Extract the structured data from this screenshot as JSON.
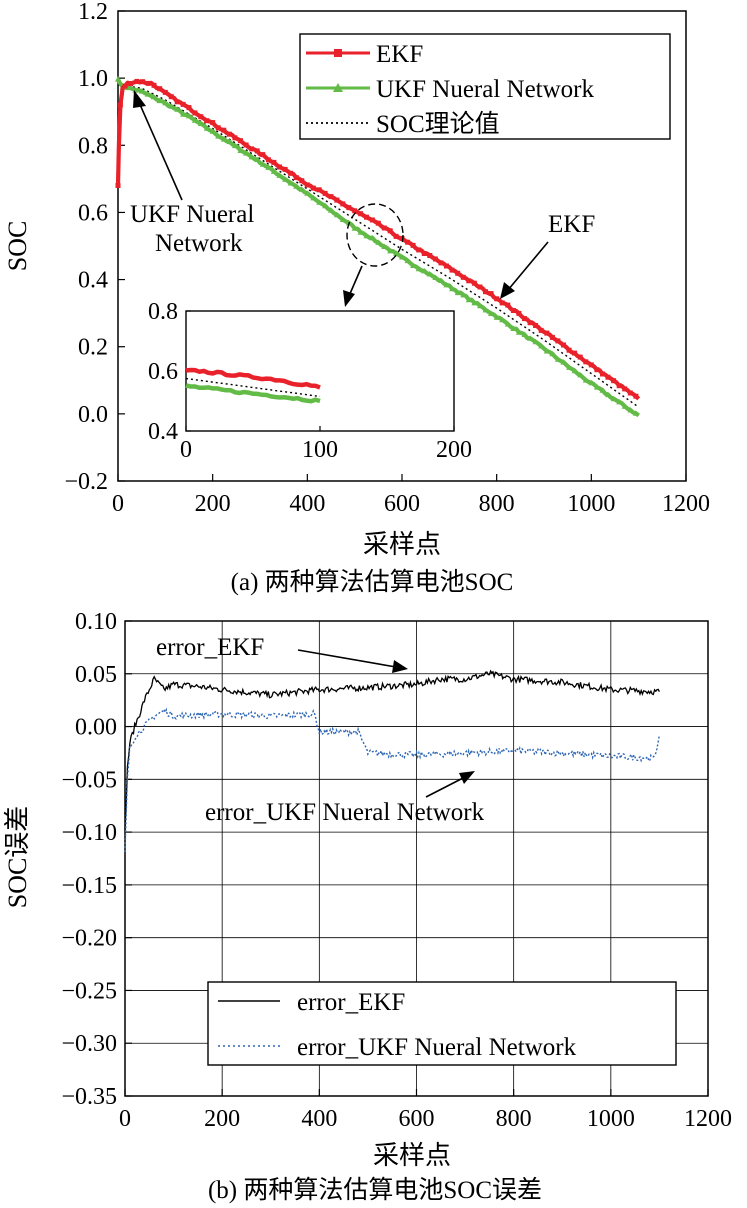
{
  "chart_data": [
    {
      "type": "line",
      "caption": "(a) 两种算法估算电池SOC",
      "xlabel": "采样点",
      "ylabel": "SOC",
      "xlim": [
        0,
        1200
      ],
      "ylim": [
        -0.2,
        1.2
      ],
      "xticks": [
        "0",
        "200",
        "400",
        "600",
        "800",
        "1000",
        "1200"
      ],
      "yticks": [
        "1.2",
        "1.0",
        "0.8",
        "0.6",
        "0.4",
        "0.2",
        "0.0",
        "−0.2"
      ],
      "grid": false,
      "legend_position": "top-right",
      "series": [
        {
          "name": "EKF",
          "color": "#e8212a",
          "x": [
            0,
            2,
            5,
            10,
            20,
            40,
            70,
            100,
            150,
            200,
            300,
            400,
            450,
            500,
            550,
            600,
            700,
            800,
            900,
            1000,
            1100
          ],
          "y": [
            0.68,
            0.8,
            0.92,
            0.97,
            0.985,
            0.99,
            0.985,
            0.955,
            0.91,
            0.865,
            0.775,
            0.685,
            0.645,
            0.605,
            0.565,
            0.52,
            0.435,
            0.345,
            0.245,
            0.145,
            0.045
          ]
        },
        {
          "name": "UKF Nueral Network",
          "color": "#62bb46",
          "x": [
            0,
            3,
            10,
            30,
            50,
            100,
            150,
            200,
            300,
            400,
            450,
            500,
            550,
            600,
            700,
            800,
            900,
            1000,
            1100
          ],
          "y": [
            1.0,
            0.985,
            0.975,
            0.968,
            0.96,
            0.925,
            0.885,
            0.84,
            0.75,
            0.655,
            0.605,
            0.555,
            0.51,
            0.465,
            0.38,
            0.29,
            0.195,
            0.09,
            -0.005
          ]
        },
        {
          "name": "SOC理论值",
          "color": "#000000",
          "x": [
            0,
            50,
            100,
            200,
            300,
            400,
            500,
            600,
            700,
            800,
            900,
            1000,
            1100
          ],
          "y": [
            0.98,
            0.97,
            0.935,
            0.85,
            0.76,
            0.67,
            0.58,
            0.49,
            0.405,
            0.315,
            0.22,
            0.12,
            0.02
          ]
        }
      ],
      "annotations": [
        {
          "text_lines": [
            "UKF Nueral",
            "Network"
          ]
        },
        {
          "text_lines": [
            "EKF"
          ]
        }
      ],
      "inset": {
        "xlim": [
          0,
          200
        ],
        "ylim": [
          0.4,
          0.8
        ],
        "xticks": [
          "0",
          "100",
          "200"
        ],
        "yticks": [
          "0.8",
          "0.6",
          "0.4"
        ],
        "series": [
          {
            "name": "EKF",
            "color": "#e8212a",
            "x": [
              0,
              10,
              20,
              30,
              40,
              50,
              60,
              70,
              80,
              90,
              100
            ],
            "y": [
              0.6,
              0.6,
              0.595,
              0.59,
              0.585,
              0.58,
              0.575,
              0.57,
              0.56,
              0.555,
              0.545
            ]
          },
          {
            "name": "SOC理论值",
            "color": "#000000",
            "x": [
              0,
              50,
              100
            ],
            "y": [
              0.575,
              0.545,
              0.515
            ]
          },
          {
            "name": "UKF Nueral Network",
            "color": "#62bb46",
            "x": [
              0,
              10,
              20,
              30,
              40,
              50,
              60,
              70,
              80,
              90,
              100
            ],
            "y": [
              0.55,
              0.545,
              0.54,
              0.535,
              0.53,
              0.525,
              0.52,
              0.515,
              0.51,
              0.505,
              0.5
            ]
          }
        ]
      }
    },
    {
      "type": "line",
      "caption": "(b) 两种算法估算电池SOC误差",
      "xlabel": "采样点",
      "ylabel": "SOC误差",
      "xlim": [
        0,
        1200
      ],
      "ylim": [
        -0.35,
        0.1
      ],
      "xticks": [
        "0",
        "200",
        "400",
        "600",
        "800",
        "1000",
        "1200"
      ],
      "yticks": [
        "0.10",
        "0.05",
        "0.00",
        "−0.05",
        "−0.10",
        "−0.15",
        "−0.20",
        "−0.25",
        "−0.30",
        "−0.35"
      ],
      "grid": true,
      "legend_position": "bottom-right",
      "series": [
        {
          "name": "error_EKF",
          "color": "#000000",
          "style": "solid",
          "x": [
            0,
            5,
            10,
            20,
            30,
            40,
            50,
            60,
            70,
            80,
            100,
            150,
            200,
            300,
            400,
            500,
            600,
            650,
            700,
            750,
            800,
            900,
            1000,
            1100
          ],
          "y": [
            -0.1,
            -0.04,
            -0.015,
            0.0,
            0.012,
            0.025,
            0.035,
            0.045,
            0.04,
            0.035,
            0.04,
            0.038,
            0.035,
            0.03,
            0.035,
            0.037,
            0.04,
            0.045,
            0.045,
            0.05,
            0.045,
            0.042,
            0.035,
            0.033
          ]
        },
        {
          "name": "error_UKF Nueral Network",
          "color": "#2e66b4",
          "style": "dotted",
          "x": [
            0,
            5,
            10,
            20,
            30,
            40,
            50,
            60,
            80,
            100,
            200,
            300,
            390,
            400,
            480,
            500,
            600,
            700,
            800,
            900,
            1000,
            1090,
            1100
          ],
          "y": [
            -0.12,
            -0.05,
            -0.02,
            -0.01,
            -0.005,
            0.0,
            0.005,
            0.01,
            0.015,
            0.01,
            0.012,
            0.01,
            0.012,
            -0.005,
            -0.005,
            -0.025,
            -0.027,
            -0.025,
            -0.023,
            -0.025,
            -0.028,
            -0.03,
            -0.008
          ]
        }
      ],
      "annotations": [
        {
          "text": "error_EKF"
        },
        {
          "text": "error_UKF Nueral Network"
        }
      ]
    }
  ]
}
